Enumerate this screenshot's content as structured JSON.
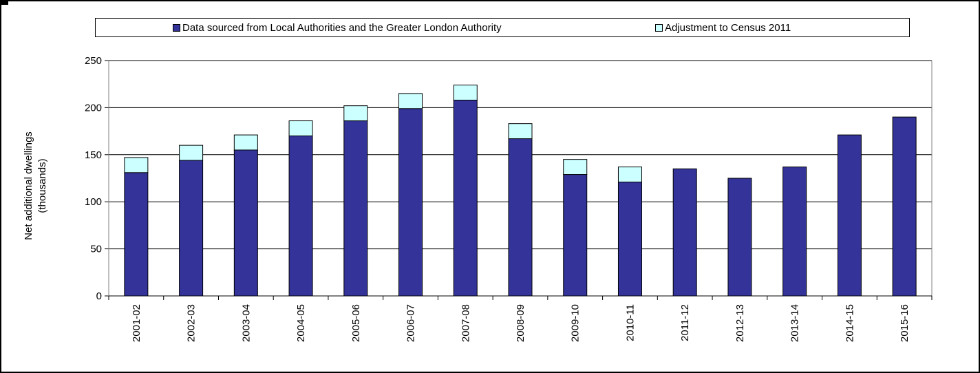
{
  "colors": {
    "primary": "#333399",
    "adjustment": "#ccffff",
    "grid": "#000000"
  },
  "chart_data": {
    "type": "bar",
    "stacked": true,
    "categories": [
      "2001-02",
      "2002-03",
      "2003-04",
      "2004-05",
      "2005-06",
      "2006-07",
      "2007-08",
      "2008-09",
      "2009-10",
      "2010-11",
      "2011-12",
      "2012-13",
      "2013-14",
      "2014-15",
      "2015-16"
    ],
    "series": [
      {
        "name": "Data sourced from Local Authorities and the Greater London Authority",
        "color": "#333399",
        "values": [
          131,
          144,
          155,
          170,
          186,
          199,
          208,
          167,
          129,
          121,
          135,
          125,
          137,
          171,
          190
        ]
      },
      {
        "name": "Adjustment to Census 2011",
        "color": "#ccffff",
        "values": [
          16,
          16,
          16,
          16,
          16,
          16,
          16,
          16,
          16,
          16,
          0,
          0,
          0,
          0,
          0
        ]
      }
    ],
    "ylabel_lines": [
      "Net additional dwellings",
      "(thousands)"
    ],
    "xlabel": "",
    "ylim": [
      0,
      250
    ],
    "yticks": [
      0,
      50,
      100,
      150,
      200,
      250
    ],
    "grid": true,
    "legend": "top"
  }
}
